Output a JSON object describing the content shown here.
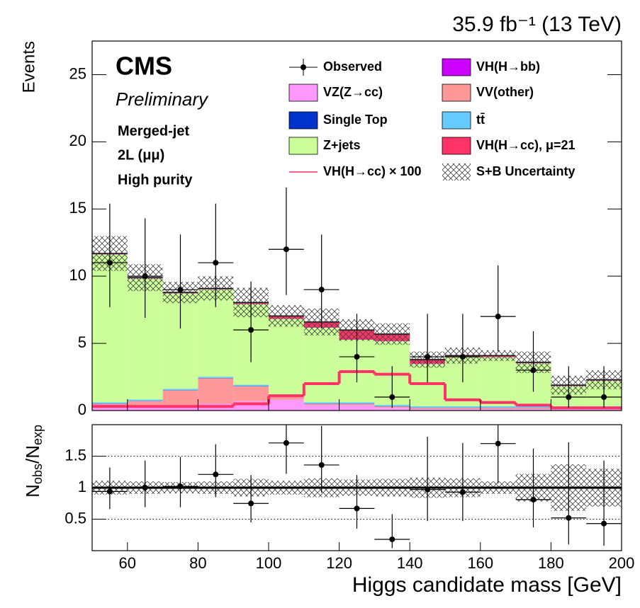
{
  "chart_data": {
    "type": "stacked_histogram",
    "title": "35.9 fb⁻¹ (13 TeV)",
    "ylabel": "Events",
    "xlabel": "Higgs candidate mass [GeV]",
    "annotations": {
      "experiment": "CMS",
      "status": "Preliminary",
      "lines": [
        "Merged-jet",
        "2L (μμ)",
        "High purity"
      ]
    },
    "bins": [
      50,
      60,
      70,
      80,
      90,
      100,
      110,
      120,
      130,
      140,
      150,
      160,
      170,
      180,
      190,
      200
    ],
    "xlim": [
      50,
      200
    ],
    "xticks": [
      60,
      80,
      100,
      120,
      140,
      160,
      180,
      200
    ],
    "ylim": [
      0,
      27.5
    ],
    "yticks": [
      0,
      5,
      10,
      15,
      20,
      25
    ],
    "series": [
      {
        "name": "VZ(Z→cc)",
        "color": "#ff99ff",
        "values": [
          0.2,
          0.2,
          0.2,
          0.5,
          0.7,
          0.8,
          0.4,
          0.4,
          0.2,
          0.1,
          0.1,
          0.1,
          0.1,
          0.1,
          0.1
        ]
      },
      {
        "name": "VV(other)",
        "color": "#ff9999",
        "values": [
          0.3,
          0.5,
          1.3,
          1.9,
          1.1,
          0.2,
          0.1,
          0.1,
          0.1,
          0.1,
          0.1,
          0.1,
          0.1,
          0.1,
          0.1
        ]
      },
      {
        "name": "Single Top",
        "color": "#0033cc",
        "values": [
          0.02,
          0.02,
          0.02,
          0.02,
          0.02,
          0.02,
          0.02,
          0.02,
          0.02,
          0.02,
          0.02,
          0.02,
          0.02,
          0.02,
          0.02
        ]
      },
      {
        "name": "tt̄",
        "color": "#66ccff",
        "values": [
          0.1,
          0.1,
          0.1,
          0.1,
          0.1,
          0.1,
          0.1,
          0.1,
          0.1,
          0.1,
          0.1,
          0.1,
          0.1,
          0.1,
          0.1
        ]
      },
      {
        "name": "Z+jets",
        "color": "#ccff99",
        "values": [
          11.0,
          9.0,
          7.1,
          6.5,
          6.0,
          5.7,
          5.55,
          4.65,
          4.75,
          3.15,
          3.65,
          3.65,
          3.2,
          1.5,
          1.9
        ]
      },
      {
        "name": "VH(H→bb)",
        "color": "#cc00ff",
        "values": [
          0.02,
          0.02,
          0.02,
          0.02,
          0.02,
          0.02,
          0.02,
          0.02,
          0.02,
          0.02,
          0.02,
          0.02,
          0.02,
          0.02,
          0.02
        ]
      },
      {
        "name": "VH(H→cc), μ=21",
        "color": "#ff3366",
        "values": [
          0.05,
          0.05,
          0.05,
          0.05,
          0.1,
          0.2,
          0.4,
          0.7,
          0.5,
          0.3,
          0.1,
          0.1,
          0.05,
          0.05,
          0.05
        ]
      }
    ],
    "signal_line": {
      "name": "VH(H→cc) × 100",
      "color": "#ff3366",
      "values": [
        0.3,
        0.3,
        0.3,
        0.3,
        0.5,
        1.1,
        2.0,
        2.9,
        2.7,
        2.0,
        0.8,
        0.6,
        0.4,
        0.2,
        0.2
      ]
    },
    "uncertainty": {
      "name": "S+B Uncertainty",
      "values": [
        1.3,
        1.0,
        0.8,
        0.9,
        1.1,
        0.8,
        1.0,
        0.8,
        0.8,
        0.6,
        0.6,
        0.4,
        0.8,
        0.7,
        0.7
      ]
    },
    "observed": {
      "name": "Observed",
      "color": "#000000",
      "values": [
        11,
        10,
        9,
        11,
        6,
        12,
        9,
        4,
        1,
        4,
        4,
        7,
        3,
        1,
        1
      ],
      "err_low": [
        3.3,
        3.1,
        2.9,
        3.3,
        2.4,
        3.4,
        2.9,
        1.9,
        0.8,
        1.9,
        1.9,
        2.6,
        1.6,
        0.8,
        0.8
      ],
      "err_high": [
        4.4,
        4.3,
        4.1,
        4.4,
        3.6,
        4.6,
        4.1,
        3.2,
        2.3,
        3.2,
        3.2,
        3.8,
        2.9,
        2.3,
        2.3
      ]
    },
    "ratio": {
      "ylabel": [
        "N",
        "obs",
        "/N",
        "exp"
      ],
      "ylim": [
        0,
        2
      ],
      "yticks": [
        0.5,
        1,
        1.5
      ],
      "reference": 1,
      "values": [
        0.94,
        1.0,
        1.02,
        1.21,
        0.75,
        1.71,
        1.36,
        0.67,
        0.18,
        0.97,
        0.93,
        1.7,
        0.81,
        0.52,
        0.43
      ],
      "err_low": [
        0.28,
        0.31,
        0.33,
        0.36,
        0.3,
        0.49,
        0.44,
        0.32,
        0.14,
        0.5,
        0.46,
        0.63,
        0.44,
        0.42,
        0.35
      ],
      "err_high": [
        0.38,
        0.43,
        0.47,
        0.48,
        0.45,
        0.66,
        0.62,
        0.53,
        0.4,
        0.84,
        0.78,
        0.93,
        0.81,
        1.2,
        1.0
      ],
      "band": [
        0.11,
        0.1,
        0.09,
        0.1,
        0.14,
        0.11,
        0.15,
        0.13,
        0.14,
        0.16,
        0.15,
        0.1,
        0.22,
        0.37,
        0.3
      ]
    }
  }
}
